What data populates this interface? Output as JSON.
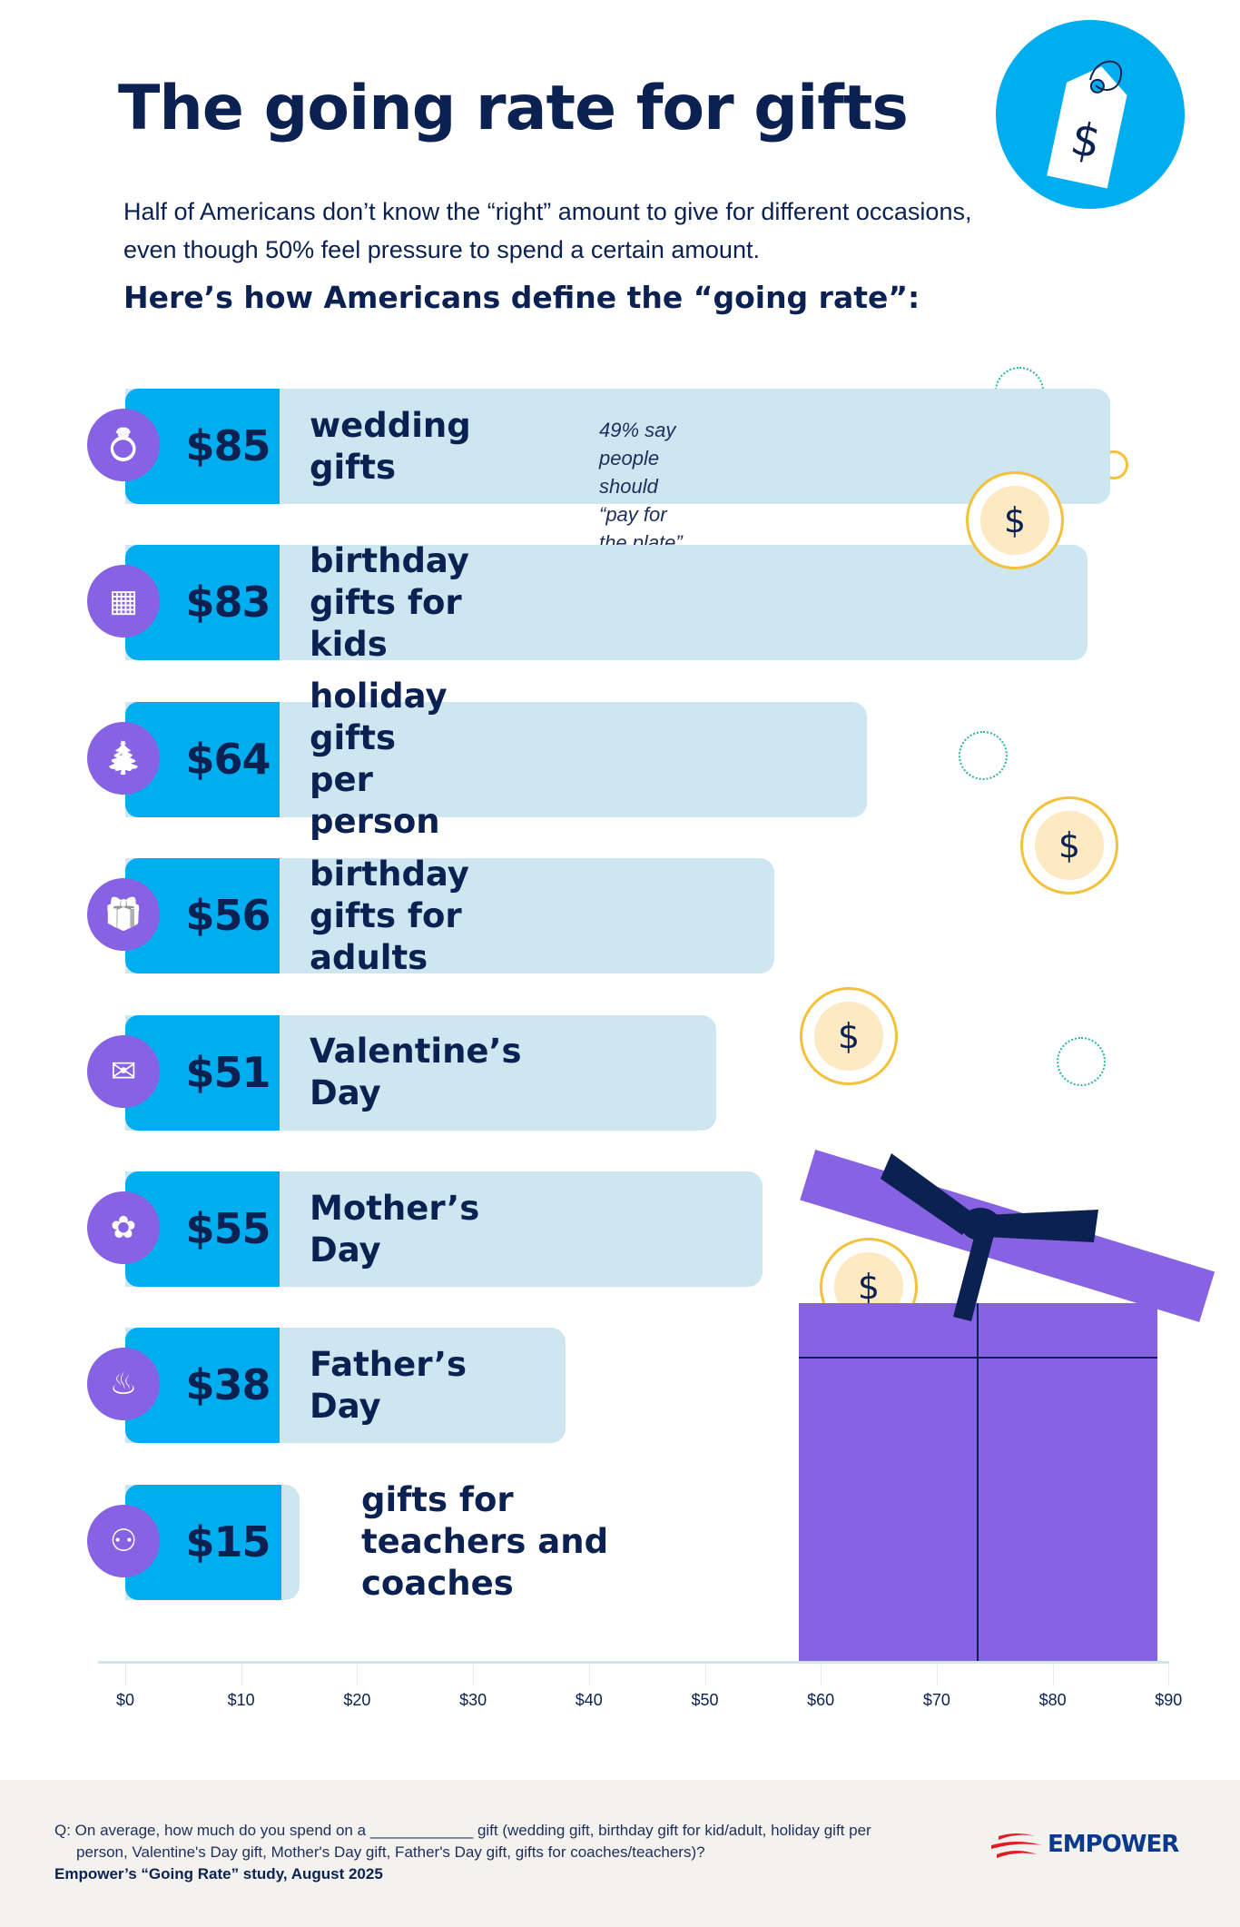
{
  "header": {
    "title": "The going rate for gifts",
    "subtitle": "Half of Americans don’t know the “right” amount to give for different occasions, even though 50% feel pressure to spend a certain amount.",
    "subhead": "Here’s how Americans define the “going rate”:"
  },
  "colors": {
    "value_bar": "#00aeef",
    "bar_track": "#cde6f0",
    "icon_bg": "#8762e3",
    "text": "#0b2152",
    "coin": "#f3c13a",
    "gift_box": "#8762e3"
  },
  "chart_data": {
    "type": "bar",
    "orientation": "horizontal",
    "categories": [
      "wedding gifts",
      "birthday gifts for kids",
      "holiday gifts per person",
      "birthday gifts for adults",
      "Valentine’s Day",
      "Mother’s Day",
      "Father’s Day",
      "gifts for teachers and coaches"
    ],
    "values": [
      85,
      83,
      64,
      56,
      51,
      55,
      38,
      15
    ],
    "value_labels": [
      "$85",
      "$83",
      "$64",
      "$56",
      "$51",
      "$55",
      "$38",
      "$15"
    ],
    "icons": [
      "ring-icon",
      "gift-boxes-icon",
      "christmas-tree-icon",
      "gift-icon",
      "love-letter-icon",
      "flowers-icon",
      "grill-icon",
      "coach-icon"
    ],
    "annotations": [
      {
        "category": "wedding gifts",
        "text_line1": "49% say people should",
        "text_line2": "“pay for the plate” at weddings"
      }
    ],
    "xlim": [
      0,
      90
    ],
    "x_ticks": [
      "$0",
      "$10",
      "$20",
      "$30",
      "$40",
      "$50",
      "$60",
      "$70",
      "$80",
      "$90"
    ],
    "grid": false
  },
  "footer": {
    "question": "Q: On average, how much do you spend on a ____________ gift (wedding gift, birthday gift for kid/adult, holiday gift per person, Valentine's Day gift, Mother's Day gift, Father's Day gift, gifts for coaches/teachers)?",
    "source": "Empower’s “Going Rate” study, August 2025",
    "logo": "EMPOWER"
  }
}
